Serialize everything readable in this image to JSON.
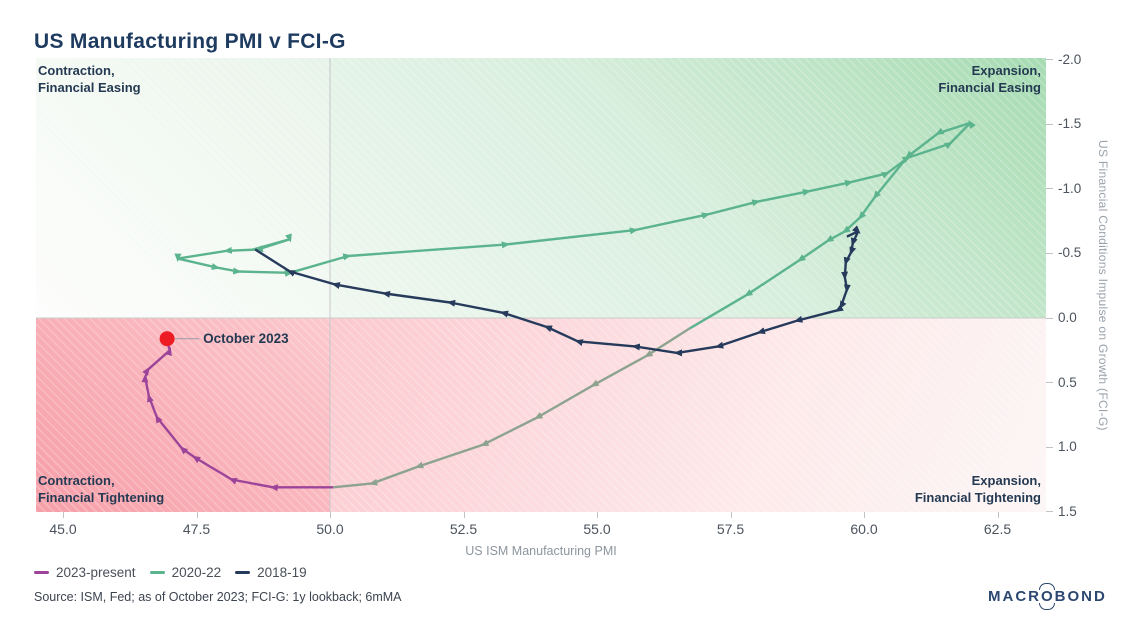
{
  "title": "US Manufacturing PMI v FCI-G",
  "quadrant_labels": {
    "top_left": "Contraction,\nFinancial Easing",
    "top_right": "Expansion,\nFinancial Easing",
    "bottom_left": "Contraction,\nFinancial Tightening",
    "bottom_right": "Expansion,\nFinancial Tightening"
  },
  "annotation": {
    "label": "October 2023",
    "color": "#ed1c24"
  },
  "axes": {
    "x": {
      "title": "US ISM Manufacturing PMI",
      "ticks": [
        {
          "value": 45.0,
          "label": "45.0"
        },
        {
          "value": 47.5,
          "label": "47.5"
        },
        {
          "value": 50.0,
          "label": "50.0"
        },
        {
          "value": 52.5,
          "label": "52.5"
        },
        {
          "value": 55.0,
          "label": "55.0"
        },
        {
          "value": 57.5,
          "label": "57.5"
        },
        {
          "value": 60.0,
          "label": "60.0"
        },
        {
          "value": 62.5,
          "label": "62.5"
        }
      ]
    },
    "y": {
      "title": "US Financial Conditions Impulse on Growth (FCI-G)",
      "inverted": true,
      "ticks": [
        {
          "value": -2.0,
          "label": "-2.0"
        },
        {
          "value": -1.5,
          "label": "-1.5"
        },
        {
          "value": -1.0,
          "label": "-1.0"
        },
        {
          "value": -0.5,
          "label": "-0.5"
        },
        {
          "value": 0.0,
          "label": "0.0"
        },
        {
          "value": 0.5,
          "label": "0.5"
        },
        {
          "value": 1.0,
          "label": "1.0"
        },
        {
          "value": 1.5,
          "label": "1.5"
        }
      ]
    }
  },
  "legend": [
    {
      "label": "2023-present",
      "color": "#9c4499"
    },
    {
      "label": "2020-22",
      "color": "#5bb48e"
    },
    {
      "label": "2018-19",
      "color": "#263a5c"
    }
  ],
  "source": "Source: ISM, Fed; as of October 2023; FCI-G: 1y lookback; 6mMA",
  "logo": {
    "pre": "MACR",
    "o": "O",
    "post": "BOND"
  },
  "chart_data": {
    "type": "scatter",
    "subtype": "connected-scatter-with-direction-arrows",
    "title": "US Manufacturing PMI v FCI-G",
    "xlabel": "US ISM Manufacturing PMI",
    "ylabel": "US Financial Conditions Impulse on Growth (FCI-G)",
    "xlim": [
      44.5,
      63.4
    ],
    "ylim": [
      -2.0,
      1.5
    ],
    "y_axis_inverted": true,
    "grid": false,
    "reference_lines": {
      "x": 50,
      "y": 0
    },
    "legend_position": "bottom-left",
    "quadrant_colors": {
      "top_right_green": "#a6dbb2",
      "bottom_left_red": "#f69fa9"
    },
    "series": [
      {
        "name": "2023-present",
        "color": "#9c4499",
        "points": [
          [
            50.06,
            1.31
          ],
          [
            48.93,
            1.31
          ],
          [
            48.16,
            1.25
          ],
          [
            47.47,
            1.08
          ],
          [
            47.23,
            1.01
          ],
          [
            46.76,
            0.77
          ],
          [
            46.61,
            0.61
          ],
          [
            46.54,
            0.46
          ],
          [
            46.59,
            0.4
          ],
          [
            47.0,
            0.25
          ],
          [
            46.95,
            0.18
          ]
        ]
      },
      {
        "name": "2020-22",
        "color": "#5bb48e",
        "tail_color": "#8da390",
        "tail_from": 27,
        "points": [
          [
            48.56,
            -0.53
          ],
          [
            49.25,
            -0.61
          ],
          [
            48.65,
            -0.53
          ],
          [
            48.07,
            -0.52
          ],
          [
            47.15,
            -0.46
          ],
          [
            47.88,
            -0.39
          ],
          [
            48.28,
            -0.36
          ],
          [
            49.25,
            -0.35
          ],
          [
            50.34,
            -0.48
          ],
          [
            53.31,
            -0.57
          ],
          [
            55.71,
            -0.68
          ],
          [
            57.06,
            -0.8
          ],
          [
            58.0,
            -0.9
          ],
          [
            58.95,
            -0.98
          ],
          [
            59.74,
            -1.05
          ],
          [
            60.43,
            -1.12
          ],
          [
            60.82,
            -1.24
          ],
          [
            61.61,
            -1.35
          ],
          [
            61.99,
            -1.51
          ],
          [
            61.39,
            -1.43
          ],
          [
            60.82,
            -1.25
          ],
          [
            60.21,
            -0.94
          ],
          [
            59.93,
            -0.78
          ],
          [
            59.64,
            -0.67
          ],
          [
            59.33,
            -0.6
          ],
          [
            58.8,
            -0.45
          ],
          [
            57.81,
            -0.18
          ],
          [
            56.74,
            0.08
          ],
          [
            55.94,
            0.29
          ],
          [
            54.93,
            0.52
          ],
          [
            53.88,
            0.77
          ],
          [
            52.87,
            0.98
          ],
          [
            51.65,
            1.15
          ],
          [
            50.79,
            1.28
          ],
          [
            50.06,
            1.31
          ]
        ]
      },
      {
        "name": "2018-19",
        "color": "#263a5c",
        "points": [
          [
            59.68,
            -0.63
          ],
          [
            59.89,
            -0.67
          ],
          [
            59.79,
            -0.58
          ],
          [
            59.76,
            -0.51
          ],
          [
            59.66,
            -0.43
          ],
          [
            59.64,
            -0.32
          ],
          [
            59.68,
            -0.22
          ],
          [
            59.57,
            -0.09
          ],
          [
            59.51,
            -0.06
          ],
          [
            58.75,
            0.02
          ],
          [
            58.05,
            0.11
          ],
          [
            57.27,
            0.22
          ],
          [
            56.5,
            0.27
          ],
          [
            55.71,
            0.22
          ],
          [
            54.64,
            0.18
          ],
          [
            54.06,
            0.07
          ],
          [
            53.24,
            -0.04
          ],
          [
            52.25,
            -0.12
          ],
          [
            51.03,
            -0.19
          ],
          [
            50.09,
            -0.26
          ],
          [
            49.25,
            -0.36
          ],
          [
            48.6,
            -0.53
          ]
        ]
      }
    ],
    "annotation": {
      "label": "October 2023",
      "point": [
        46.95,
        0.16
      ]
    }
  }
}
